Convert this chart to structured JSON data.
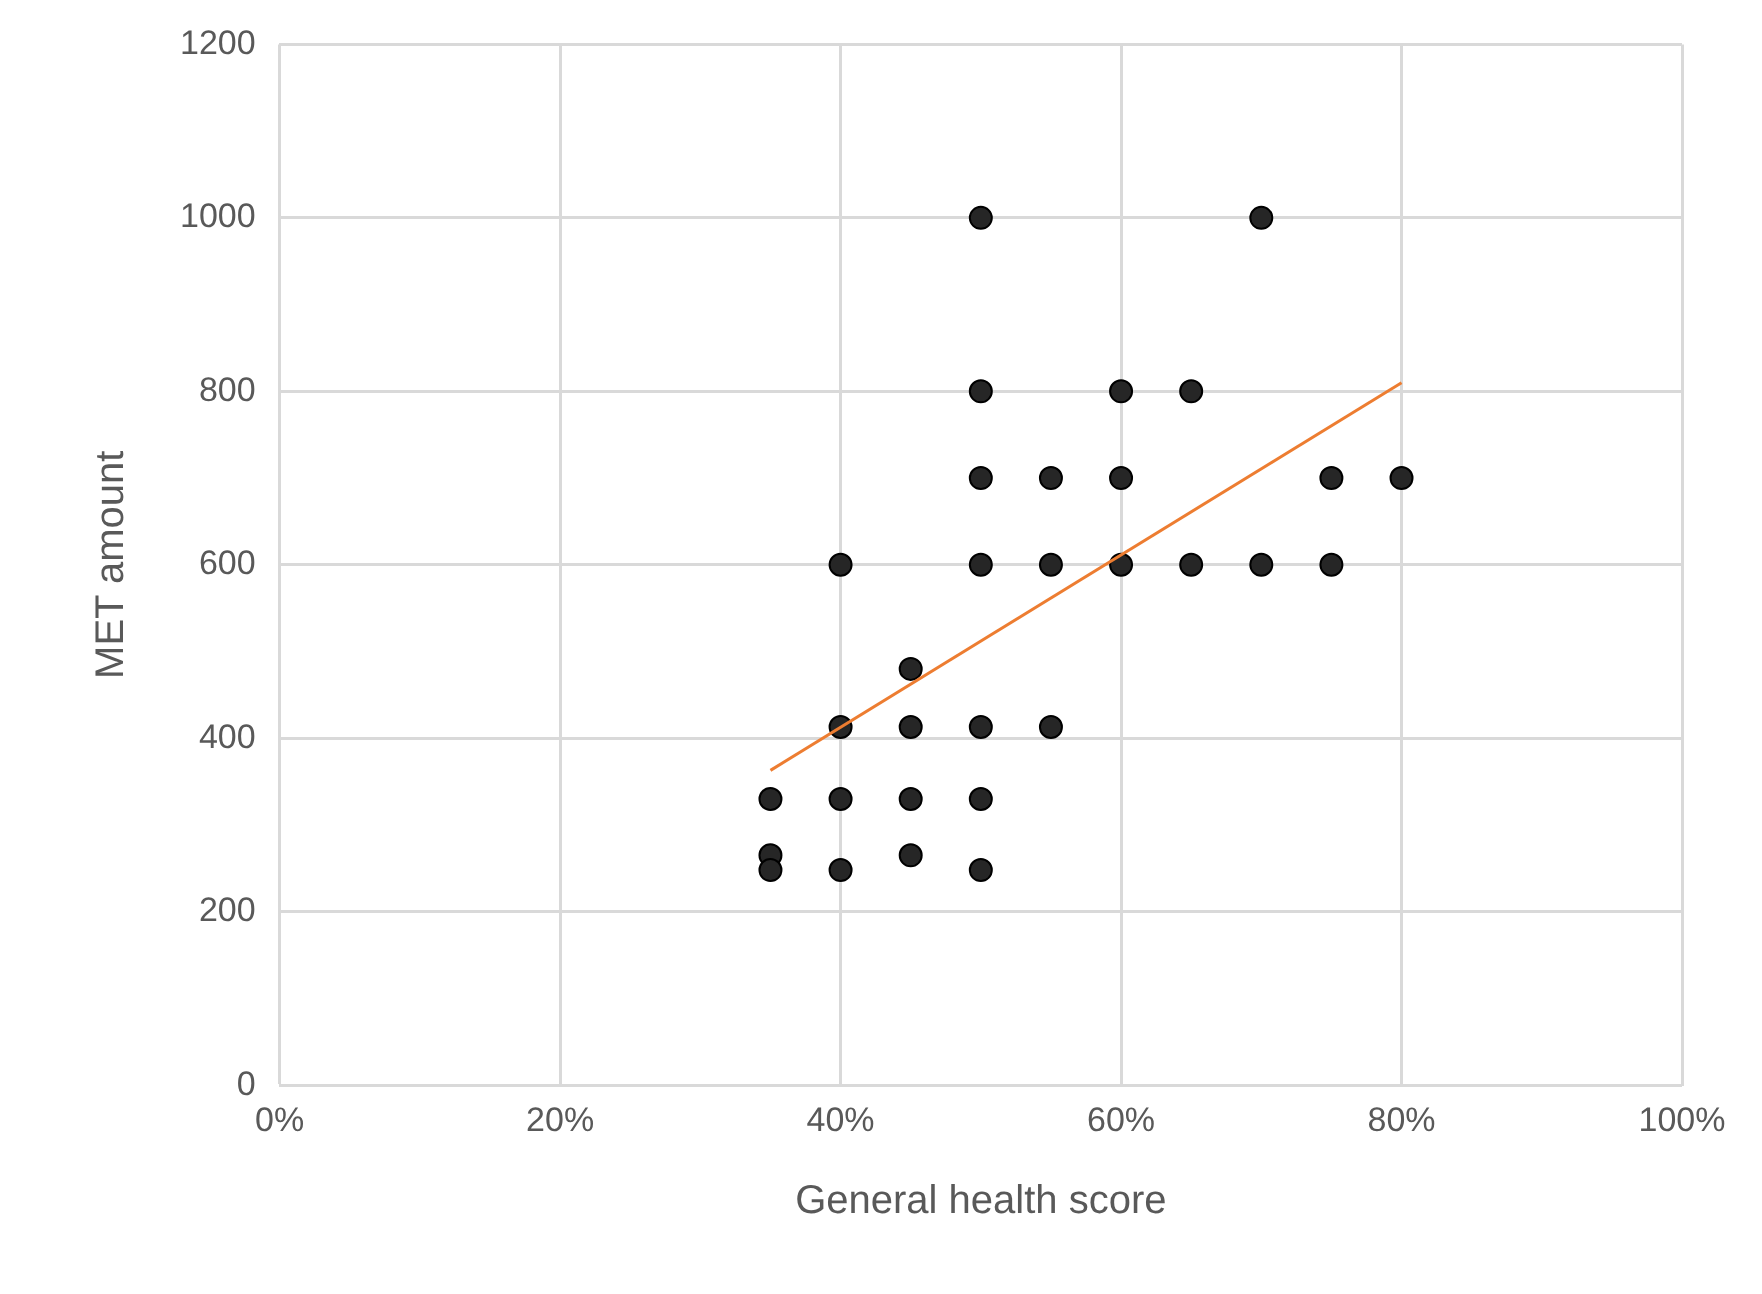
{
  "chart_data": {
    "type": "scatter",
    "xlabel": "General health score",
    "ylabel": "MET amount",
    "xlim": [
      0,
      100
    ],
    "xticks": [
      {
        "value": 0,
        "label": "0%"
      },
      {
        "value": 20,
        "label": "20%"
      },
      {
        "value": 40,
        "label": "40%"
      },
      {
        "value": 60,
        "label": "60%"
      },
      {
        "value": 80,
        "label": "80%"
      },
      {
        "value": 100,
        "label": "100%"
      }
    ],
    "ylim": [
      0,
      1200
    ],
    "yticks": [
      0,
      200,
      400,
      600,
      800,
      1000,
      1200
    ],
    "grid": true,
    "legend": false,
    "series": [
      {
        "color": "#262626",
        "marker": "circle",
        "x": [
          35,
          35,
          35,
          40,
          40,
          40,
          40,
          45,
          45,
          45,
          45,
          50,
          50,
          50,
          50,
          50,
          50,
          50,
          55,
          55,
          55,
          60,
          60,
          60,
          65,
          65,
          70,
          70,
          75,
          75,
          80
        ],
        "values": [
          330,
          265,
          248,
          600,
          413,
          330,
          248,
          480,
          413,
          330,
          265,
          1000,
          800,
          700,
          600,
          413,
          330,
          248,
          700,
          600,
          413,
          800,
          700,
          600,
          800,
          600,
          1000,
          600,
          700,
          600,
          700
        ]
      },
      {
        "type": "line",
        "marker": "none",
        "color": "#ed7d31",
        "x": [
          35,
          80
        ],
        "values": [
          363,
          810
        ]
      }
    ]
  }
}
